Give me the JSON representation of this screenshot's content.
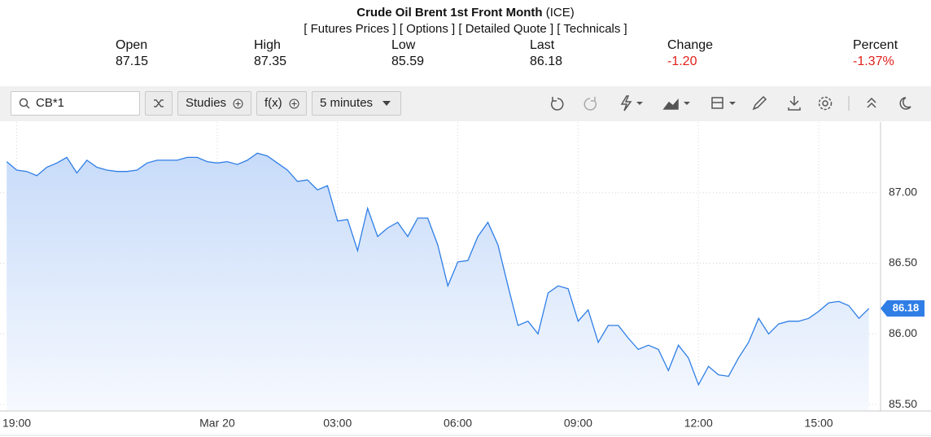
{
  "header": {
    "title": "Crude Oil Brent 1st Front Month",
    "exchange": "(ICE)",
    "links": [
      "[ Futures Prices ]",
      "[ Options ]",
      "[ Detailed Quote ]",
      "[ Technicals ]"
    ]
  },
  "quote": {
    "labels": [
      "Open",
      "High",
      "Low",
      "Last",
      "Change",
      "Percent"
    ],
    "values": [
      "87.15",
      "87.35",
      "85.59",
      "86.18",
      "-1.20",
      "-1.37%"
    ]
  },
  "toolbar": {
    "symbol": "CB*1",
    "studies": "Studies",
    "fx": "f(x)",
    "interval": "5 minutes"
  },
  "chart_data": {
    "type": "area",
    "color": "#2f7ee6",
    "grid": true,
    "x": [
      "18:45",
      "19:00",
      "19:15",
      "19:30",
      "19:45",
      "20:00",
      "20:15",
      "20:30",
      "20:45",
      "21:00",
      "21:15",
      "21:30",
      "21:45",
      "22:00",
      "22:15",
      "22:30",
      "22:45",
      "23:00",
      "23:15",
      "23:30",
      "23:45",
      "00:00",
      "00:15",
      "00:30",
      "00:45",
      "01:00",
      "01:15",
      "01:30",
      "01:45",
      "02:00",
      "02:15",
      "02:30",
      "02:45",
      "03:00",
      "03:15",
      "03:30",
      "03:45",
      "04:00",
      "04:15",
      "04:30",
      "04:45",
      "05:00",
      "05:15",
      "05:30",
      "05:45",
      "06:00",
      "06:15",
      "06:30",
      "06:45",
      "07:00",
      "07:15",
      "07:30",
      "07:45",
      "08:00",
      "08:15",
      "08:30",
      "08:45",
      "09:00",
      "09:15",
      "09:30",
      "09:45",
      "10:00",
      "10:15",
      "10:30",
      "10:45",
      "11:00",
      "11:15",
      "11:30",
      "11:45",
      "12:00",
      "12:15",
      "12:30",
      "12:45",
      "13:00",
      "13:15",
      "13:30",
      "13:45",
      "14:00",
      "14:15",
      "14:30",
      "14:45",
      "15:00",
      "15:15",
      "15:30",
      "15:45",
      "16:00",
      "16:15"
    ],
    "values": [
      87.22,
      87.16,
      87.15,
      87.12,
      87.18,
      87.21,
      87.25,
      87.14,
      87.23,
      87.18,
      87.16,
      87.15,
      87.15,
      87.16,
      87.21,
      87.23,
      87.23,
      87.23,
      87.25,
      87.25,
      87.22,
      87.21,
      87.22,
      87.2,
      87.23,
      87.28,
      87.26,
      87.21,
      87.16,
      87.08,
      87.09,
      87.02,
      87.05,
      86.8,
      86.81,
      86.59,
      86.89,
      86.69,
      86.75,
      86.79,
      86.69,
      86.82,
      86.82,
      86.63,
      86.34,
      86.51,
      86.52,
      86.69,
      86.79,
      86.63,
      86.34,
      86.06,
      86.09,
      86.0,
      86.29,
      86.34,
      86.32,
      86.09,
      86.17,
      85.94,
      86.06,
      86.06,
      85.97,
      85.89,
      85.92,
      85.89,
      85.74,
      85.92,
      85.83,
      85.64,
      85.77,
      85.71,
      85.7,
      85.83,
      85.94,
      86.11,
      86.0,
      86.07,
      86.09,
      86.09,
      86.11,
      86.16,
      86.22,
      86.23,
      86.2,
      86.11,
      86.18
    ],
    "xlim": [
      "18:35",
      "16:30"
    ],
    "xticks": [
      "19:00",
      {
        "value": "00:00",
        "label": "Mar 20"
      },
      "03:00",
      "06:00",
      "09:00",
      "12:00",
      "15:00"
    ],
    "ylim": [
      85.46,
      87.5
    ],
    "yticks": [
      {
        "value": 85.5,
        "label": "85.50"
      },
      {
        "value": 86,
        "label": "86.00"
      },
      {
        "value": 86.5,
        "label": "86.50"
      },
      {
        "value": 87,
        "label": "87.00"
      }
    ]
  }
}
